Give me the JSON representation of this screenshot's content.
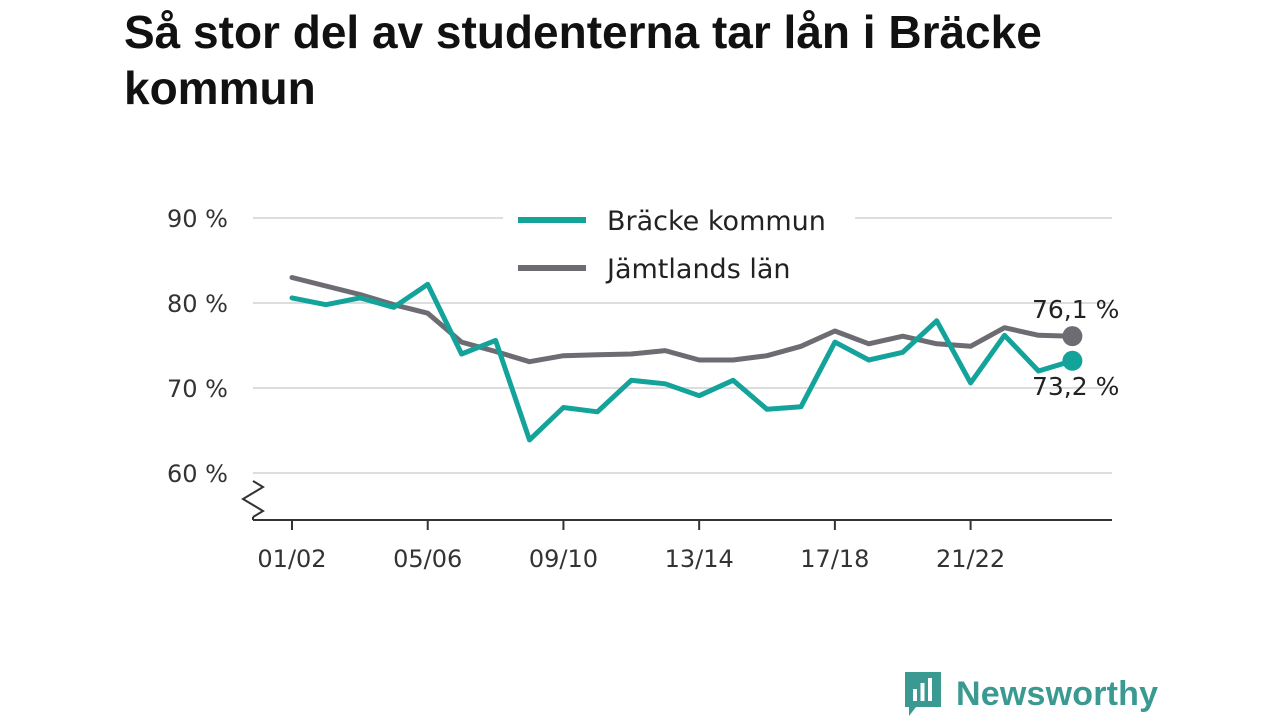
{
  "title": "Så stor del av studenterna tar lån i Bräcke kommun",
  "brand": {
    "name": "Newsworthy",
    "icon": "newsworthy-logo-icon",
    "color": "#3a9a92"
  },
  "colors": {
    "bracke": "#13a39a",
    "jamtland": "#6e6c73",
    "grid": "#dddddd",
    "axis": "#333333"
  },
  "chart_data": {
    "type": "line",
    "title": "Så stor del av studenterna tar lån i Bräcke kommun",
    "xlabel": "",
    "ylabel": "",
    "ylim": [
      60,
      90
    ],
    "y_axis_broken": true,
    "grid": true,
    "legend_position": "top-center",
    "x": [
      "01/02",
      "02/03",
      "03/04",
      "04/05",
      "05/06",
      "06/07",
      "07/08",
      "08/09",
      "09/10",
      "10/11",
      "11/12",
      "12/13",
      "13/14",
      "14/15",
      "15/16",
      "16/17",
      "17/18",
      "18/19",
      "19/20",
      "20/21",
      "21/22",
      "22/23",
      "23/24",
      "24/25"
    ],
    "x_tick_labels": [
      "01/02",
      "05/06",
      "09/10",
      "13/14",
      "17/18",
      "21/22"
    ],
    "y_ticks": [
      90,
      80,
      70,
      60
    ],
    "y_tick_labels": [
      "90 %",
      "80 %",
      "70 %",
      "60 %"
    ],
    "series": [
      {
        "name": "Bräcke kommun",
        "color": "#13a39a",
        "end_label": "73,2 %",
        "values": [
          80.6,
          79.8,
          80.6,
          79.5,
          82.2,
          74.0,
          75.6,
          63.9,
          67.7,
          67.2,
          70.9,
          70.5,
          69.1,
          70.9,
          67.5,
          67.8,
          75.4,
          73.3,
          74.2,
          77.9,
          70.6,
          76.2,
          72.0,
          73.2
        ]
      },
      {
        "name": "Jämtlands län",
        "color": "#6e6c73",
        "end_label": "76,1 %",
        "values": [
          83.0,
          82.0,
          81.0,
          79.8,
          78.8,
          75.4,
          74.3,
          73.1,
          73.8,
          73.9,
          74.0,
          74.4,
          73.3,
          73.3,
          73.8,
          74.9,
          76.7,
          75.2,
          76.1,
          75.2,
          74.9,
          77.1,
          76.2,
          76.1
        ]
      }
    ]
  }
}
